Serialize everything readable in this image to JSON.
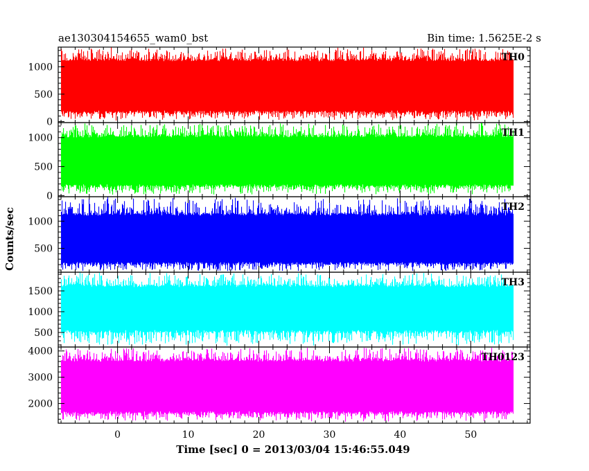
{
  "header": {
    "title_left": "ae130304154655_wam0_bst",
    "title_right": "Bin time: 1.5625E-2 s"
  },
  "chart_data": {
    "type": "line",
    "style": "dense binned light curve, stacked panels sharing the time axis",
    "bin_time_s": 0.015625,
    "xlabel": "Time [sec] 0 = 2013/03/04 15:46:55.049",
    "ylabel": "Counts/sec",
    "xlim": [
      -8.4,
      58.4
    ],
    "x_data_range": [
      -8.0,
      56.0
    ],
    "x_ticks": [
      0,
      10,
      20,
      30,
      40,
      50
    ],
    "panels": [
      {
        "name": "TH0",
        "color": "#ff0000",
        "ylim": [
          -20,
          1360
        ],
        "y_ticks": [
          0,
          500,
          1000
        ],
        "typical_range": [
          150,
          1150
        ],
        "min": 5,
        "max": 1360
      },
      {
        "name": "TH1",
        "color": "#00ff00",
        "ylim": [
          -20,
          1260
        ],
        "y_ticks": [
          0,
          500,
          1000
        ],
        "typical_range": [
          150,
          1050
        ],
        "min": 5,
        "max": 1260
      },
      {
        "name": "TH2",
        "color": "#0000ff",
        "ylim": [
          60,
          1450
        ],
        "y_ticks": [
          500,
          1000
        ],
        "typical_range": [
          200,
          1150
        ],
        "min": 70,
        "max": 1450
      },
      {
        "name": "TH3",
        "color": "#00ffff",
        "ylim": [
          150,
          1950
        ],
        "y_ticks": [
          500,
          1000,
          1500
        ],
        "typical_range": [
          500,
          1650
        ],
        "min": 170,
        "max": 1950
      },
      {
        "name": "TH0123",
        "color": "#ff00ff",
        "ylim": [
          1250,
          4150
        ],
        "y_ticks": [
          2000,
          3000,
          4000
        ],
        "typical_range": [
          1600,
          3700
        ],
        "min": 1300,
        "max": 4150
      }
    ]
  }
}
